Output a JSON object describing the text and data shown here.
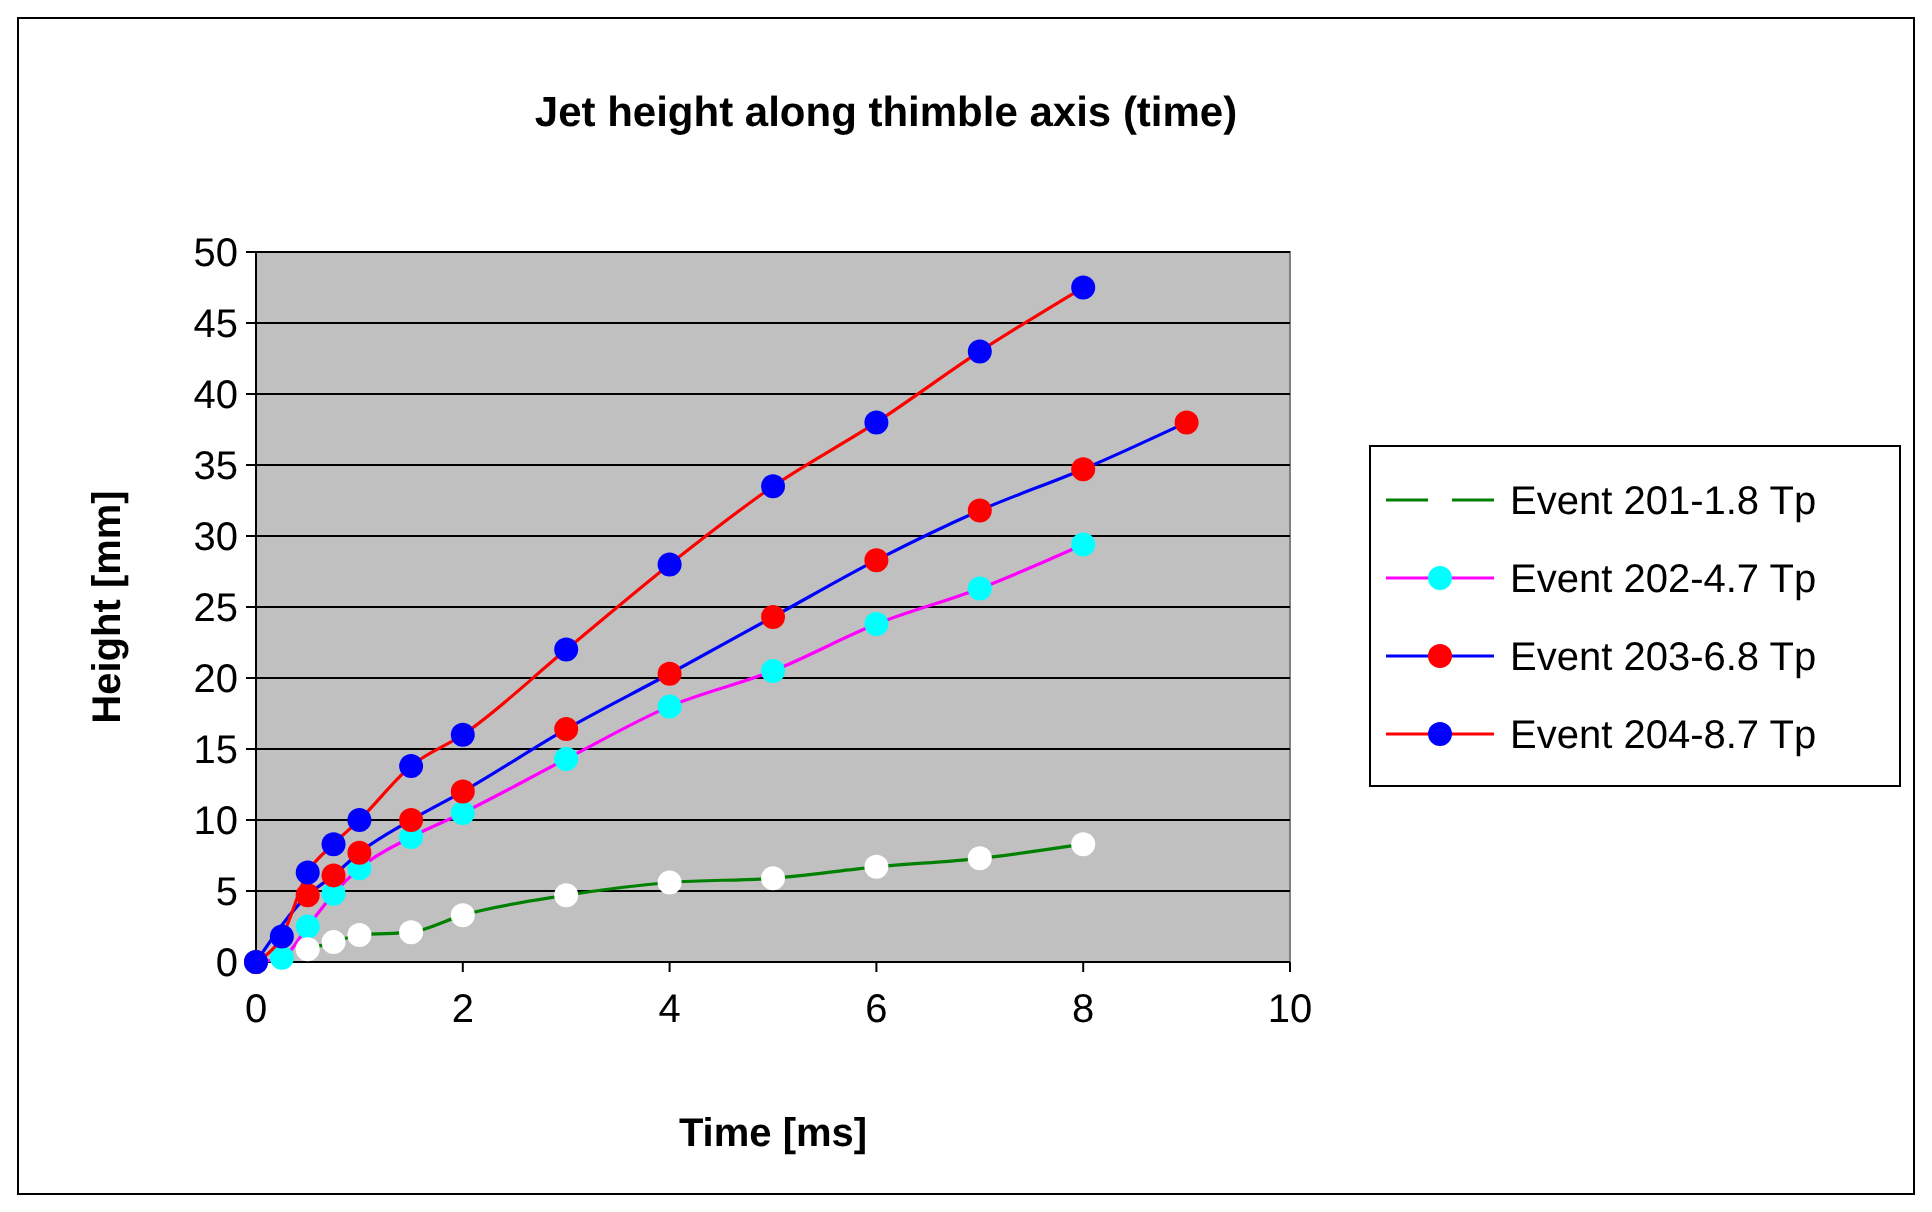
{
  "chart_data": {
    "type": "line",
    "title": "Jet height along thimble axis (time)",
    "xlabel": "Time  [ms]",
    "ylabel": "Height  [mm]",
    "xlim": [
      0,
      10
    ],
    "xticks": [
      0,
      2,
      4,
      6,
      8,
      10
    ],
    "ylim": [
      0,
      50
    ],
    "yticks": [
      0,
      5,
      10,
      15,
      20,
      25,
      30,
      35,
      40,
      45,
      50
    ],
    "grid": "y",
    "legend": "right",
    "marker": "circle",
    "series": [
      {
        "name": "Event 201-1.8 Tp",
        "color": "#008000",
        "x": [
          0.5,
          0.75,
          1,
          1.5,
          2,
          3,
          4,
          5,
          6,
          7,
          8
        ],
        "values": [
          0.9,
          1.4,
          1.9,
          2.1,
          3.3,
          4.7,
          5.6,
          5.9,
          6.7,
          7.3,
          8.3
        ],
        "colors": [
          "#ffffff",
          "#ffffff",
          "#ffffff",
          "#ffffff",
          "#ffffff",
          "#ffffff",
          "#ffffff",
          "#ffffff",
          "#ffffff",
          "#ffffff",
          "#ffffff"
        ]
      },
      {
        "name": "Event 202-4.7 Tp",
        "color": "#ff00ff",
        "x": [
          0,
          0.25,
          0.5,
          0.75,
          1,
          1.5,
          2,
          3,
          4,
          5,
          6,
          7,
          8
        ],
        "values": [
          0,
          0.3,
          2.5,
          4.8,
          6.6,
          8.8,
          10.5,
          14.3,
          18,
          20.5,
          23.8,
          26.3,
          29.4
        ],
        "colors": [
          "#00ffff",
          "#00ffff",
          "#00ffff",
          "#00ffff",
          "#00ffff",
          "#00ffff",
          "#00ffff",
          "#00ffff",
          "#00ffff",
          "#00ffff",
          "#00ffff",
          "#00ffff",
          "#00ffff"
        ]
      },
      {
        "name": "Event 203-6.8 Tp",
        "color": "#0000ff",
        "x": [
          0,
          0.5,
          0.75,
          1,
          1.5,
          2,
          3,
          4,
          5,
          6,
          7,
          8,
          9
        ],
        "values": [
          0,
          4.7,
          6.1,
          7.7,
          10,
          12,
          16.4,
          20.3,
          24.3,
          28.3,
          31.8,
          34.7,
          38
        ],
        "colors": [
          "#ff0000",
          "#ff0000",
          "#ff0000",
          "#ff0000",
          "#ff0000",
          "#ff0000",
          "#ff0000",
          "#ff0000",
          "#ff0000",
          "#ff0000",
          "#ff0000",
          "#ff0000",
          "#ff0000"
        ]
      },
      {
        "name": "Event 204-8.7 Tp",
        "color": "#ff0000",
        "x": [
          0,
          0.25,
          0.5,
          0.75,
          1,
          1.5,
          2,
          3,
          4,
          5,
          6,
          7,
          8
        ],
        "values": [
          0,
          1.8,
          6.3,
          8.3,
          10,
          13.8,
          16,
          22,
          28,
          33.5,
          38,
          43,
          47.5
        ],
        "colors": [
          "#0000ff",
          "#0000ff",
          "#0000ff",
          "#0000ff",
          "#0000ff",
          "#0000ff",
          "#0000ff",
          "#0000ff",
          "#0000ff",
          "#0000ff",
          "#0000ff",
          "#0000ff",
          "#0000ff"
        ]
      }
    ]
  }
}
